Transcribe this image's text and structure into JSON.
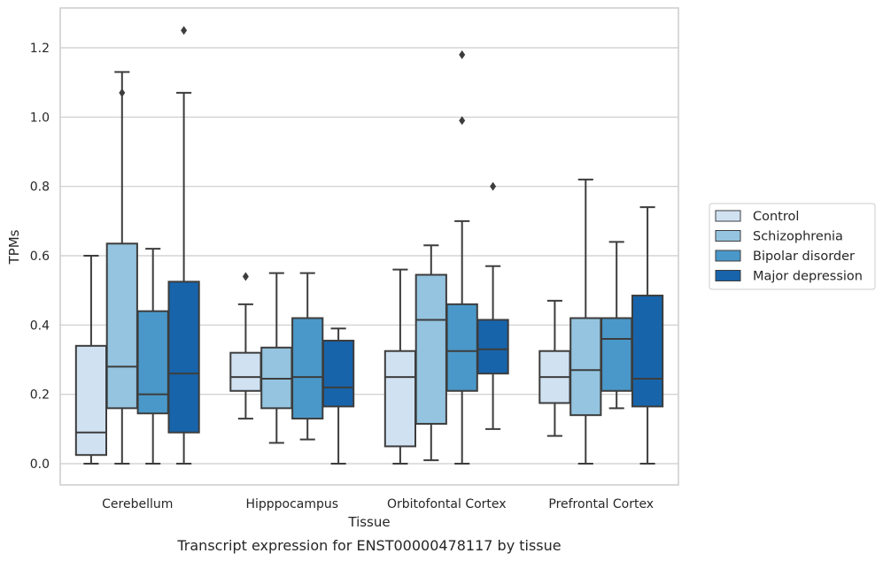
{
  "chart_data": {
    "type": "box",
    "xlabel": "Tissue",
    "ylabel": "TPMs",
    "caption": "Transcript expression for ENST00000478117 by tissue",
    "ylim": [
      -0.06,
      1.32
    ],
    "yticks": [
      "0.0",
      "0.2",
      "0.4",
      "0.6",
      "0.8",
      "1.0",
      "1.2"
    ],
    "grid": "horizontal",
    "legend_placement": "outside-right",
    "categories": [
      "Cerebellum",
      "Hipppocampus",
      "Orbitofontal Cortex",
      "Prefrontal Cortex"
    ],
    "series": [
      {
        "name": "Control",
        "color": "#d0e1f2",
        "boxes": [
          {
            "whislo": 0.0,
            "q1": 0.025,
            "med": 0.09,
            "q3": 0.34,
            "whishi": 0.6,
            "fliers": []
          },
          {
            "whislo": 0.13,
            "q1": 0.21,
            "med": 0.25,
            "q3": 0.32,
            "whishi": 0.46,
            "fliers": [
              0.54
            ]
          },
          {
            "whislo": 0.0,
            "q1": 0.05,
            "med": 0.25,
            "q3": 0.325,
            "whishi": 0.56,
            "fliers": []
          },
          {
            "whislo": 0.08,
            "q1": 0.175,
            "med": 0.25,
            "q3": 0.325,
            "whishi": 0.47,
            "fliers": []
          }
        ]
      },
      {
        "name": "Schizophrenia",
        "color": "#94c4df",
        "boxes": [
          {
            "whislo": 0.0,
            "q1": 0.16,
            "med": 0.28,
            "q3": 0.635,
            "whishi": 1.13,
            "fliers": [
              1.07
            ]
          },
          {
            "whislo": 0.06,
            "q1": 0.16,
            "med": 0.245,
            "q3": 0.335,
            "whishi": 0.55,
            "fliers": []
          },
          {
            "whislo": 0.01,
            "q1": 0.115,
            "med": 0.415,
            "q3": 0.545,
            "whishi": 0.63,
            "fliers": []
          },
          {
            "whislo": 0.0,
            "q1": 0.14,
            "med": 0.27,
            "q3": 0.42,
            "whishi": 0.82,
            "fliers": []
          }
        ]
      },
      {
        "name": "Bipolar disorder",
        "color": "#4a98c9",
        "boxes": [
          {
            "whislo": 0.0,
            "q1": 0.145,
            "med": 0.2,
            "q3": 0.44,
            "whishi": 0.62,
            "fliers": []
          },
          {
            "whislo": 0.07,
            "q1": 0.13,
            "med": 0.25,
            "q3": 0.42,
            "whishi": 0.55,
            "fliers": []
          },
          {
            "whislo": 0.0,
            "q1": 0.21,
            "med": 0.325,
            "q3": 0.46,
            "whishi": 0.7,
            "fliers": [
              0.99,
              1.18
            ]
          },
          {
            "whislo": 0.16,
            "q1": 0.21,
            "med": 0.36,
            "q3": 0.42,
            "whishi": 0.64,
            "fliers": []
          }
        ]
      },
      {
        "name": "Major depression",
        "color": "#1764ab",
        "boxes": [
          {
            "whislo": 0.0,
            "q1": 0.09,
            "med": 0.26,
            "q3": 0.525,
            "whishi": 1.07,
            "fliers": [
              1.25
            ]
          },
          {
            "whislo": 0.0,
            "q1": 0.165,
            "med": 0.22,
            "q3": 0.355,
            "whishi": 0.39,
            "fliers": []
          },
          {
            "whislo": 0.1,
            "q1": 0.26,
            "med": 0.33,
            "q3": 0.415,
            "whishi": 0.57,
            "fliers": [
              0.8
            ]
          },
          {
            "whislo": 0.0,
            "q1": 0.165,
            "med": 0.245,
            "q3": 0.485,
            "whishi": 0.74,
            "fliers": []
          }
        ]
      }
    ]
  }
}
